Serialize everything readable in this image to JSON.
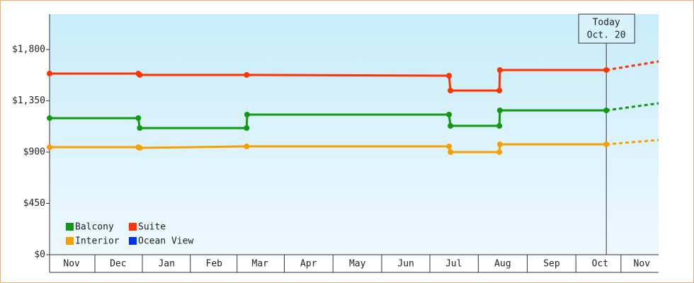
{
  "chart_data": {
    "type": "line",
    "xlim": [
      0,
      12.7
    ],
    "ylim": [
      0,
      2110
    ],
    "xticks": [
      {
        "value": 0.46,
        "label": "Nov"
      },
      {
        "value": 1.43,
        "label": "Dec"
      },
      {
        "value": 2.44,
        "label": "Jan"
      },
      {
        "value": 3.43,
        "label": "Feb"
      },
      {
        "value": 4.39,
        "label": "Mar"
      },
      {
        "value": 5.4,
        "label": "Apr"
      },
      {
        "value": 6.42,
        "label": "May"
      },
      {
        "value": 7.43,
        "label": "Jun"
      },
      {
        "value": 8.43,
        "label": "Jul"
      },
      {
        "value": 9.45,
        "label": "Aug"
      },
      {
        "value": 10.47,
        "label": "Sep"
      },
      {
        "value": 11.48,
        "label": "Oct"
      },
      {
        "value": 12.35,
        "label": "Nov"
      }
    ],
    "yticks": [
      {
        "value": 0,
        "label": "$0"
      },
      {
        "value": 450,
        "label": "$450"
      },
      {
        "value": 900,
        "label": "$900"
      },
      {
        "value": 1350,
        "label": "$1,350"
      },
      {
        "value": 1800,
        "label": "$1,800"
      }
    ],
    "annotation": {
      "x": 11.61,
      "lines": [
        "Today",
        "Oct. 20"
      ]
    },
    "series": [
      {
        "name": "Balcony",
        "color": "#119911",
        "x": [
          0,
          1.85,
          1.88,
          4.11,
          4.12,
          8.33,
          8.36,
          9.38,
          9.39,
          11.61
        ],
        "values": [
          1198,
          1198,
          1111,
          1111,
          1229,
          1229,
          1130,
          1130,
          1266,
          1266
        ],
        "forecast": {
          "x": [
            11.61,
            12.7
          ],
          "values": [
            1266,
            1328
          ]
        }
      },
      {
        "name": "Suite",
        "color": "#ff3300",
        "x": [
          0,
          1.85,
          1.88,
          4.11,
          8.33,
          8.36,
          9.38,
          9.39,
          11.61
        ],
        "values": [
          1589,
          1589,
          1577,
          1577,
          1570,
          1440,
          1440,
          1620,
          1620
        ],
        "forecast": {
          "x": [
            11.61,
            12.7
          ],
          "values": [
            1620,
            1695
          ]
        }
      },
      {
        "name": "Interior",
        "color": "#f5a000",
        "x": [
          0,
          1.85,
          1.88,
          4.11,
          8.33,
          8.36,
          9.38,
          9.39,
          11.61
        ],
        "values": [
          943,
          943,
          937,
          950,
          950,
          900,
          900,
          968,
          968
        ],
        "forecast": {
          "x": [
            11.61,
            12.7
          ],
          "values": [
            968,
            1006
          ]
        }
      },
      {
        "name": "Ocean View",
        "color": "#0033ee",
        "x": [],
        "values": []
      }
    ]
  }
}
